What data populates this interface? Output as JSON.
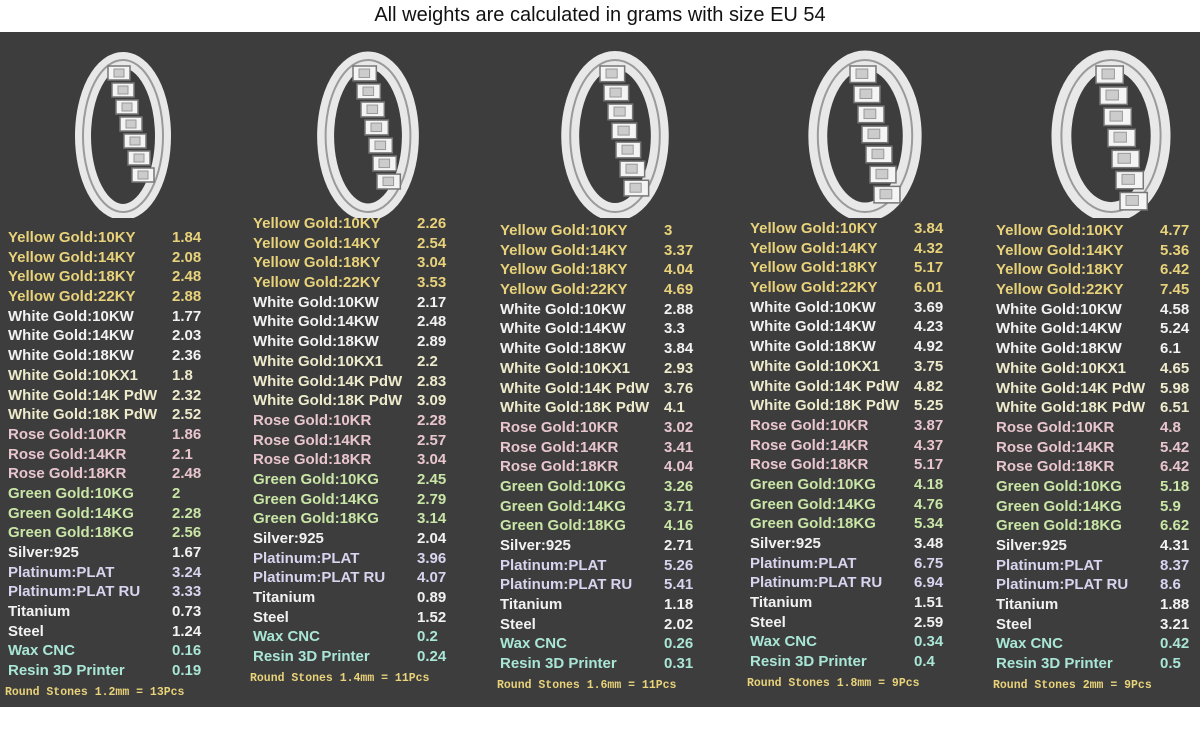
{
  "title": "All weights are calculated in grams with size EU 54",
  "colors": {
    "panel": "#3d3d3d",
    "yellow": "#e8d27a",
    "white": "#f2f2f2",
    "cream": "#eeebcc",
    "rose": "#e9c6cf",
    "green": "#c9e6a6",
    "platinum": "#d9d4ef",
    "aqua": "#a9e6d6",
    "stones": "#e8d27a"
  },
  "materials": [
    {
      "label": "Yellow Gold:10KY",
      "color": "yellow"
    },
    {
      "label": "Yellow Gold:14KY",
      "color": "yellow"
    },
    {
      "label": "Yellow Gold:18KY",
      "color": "yellow"
    },
    {
      "label": "Yellow Gold:22KY",
      "color": "yellow"
    },
    {
      "label": "White Gold:10KW",
      "color": "white"
    },
    {
      "label": "White Gold:14KW",
      "color": "white"
    },
    {
      "label": "White Gold:18KW",
      "color": "white"
    },
    {
      "label": "White Gold:10KX1",
      "color": "cream"
    },
    {
      "label": "White Gold:14K PdW",
      "color": "cream"
    },
    {
      "label": "White Gold:18K PdW",
      "color": "cream"
    },
    {
      "label": "Rose Gold:10KR",
      "color": "rose"
    },
    {
      "label": "Rose Gold:14KR",
      "color": "rose"
    },
    {
      "label": "Rose Gold:18KR",
      "color": "rose"
    },
    {
      "label": "Green Gold:10KG",
      "color": "green"
    },
    {
      "label": "Green Gold:14KG",
      "color": "green"
    },
    {
      "label": "Green Gold:18KG",
      "color": "green"
    },
    {
      "label": "Silver:925",
      "color": "white"
    },
    {
      "label": "Platinum:PLAT",
      "color": "platinum"
    },
    {
      "label": "Platinum:PLAT RU",
      "color": "platinum"
    },
    {
      "label": "Titanium",
      "color": "white"
    },
    {
      "label": "Steel",
      "color": "white"
    },
    {
      "label": "Wax  CNC",
      "color": "aqua"
    },
    {
      "label": "Resin 3D Printer",
      "color": "aqua"
    }
  ],
  "columns": [
    {
      "stones": "Round Stones 1.2mm = 13Pcs",
      "values": [
        "1.84",
        "2.08",
        "2.48",
        "2.88",
        "1.77",
        "2.03",
        "2.36",
        "1.8",
        "2.32",
        "2.52",
        "1.86",
        "2.1",
        "2.48",
        "2",
        "2.28",
        "2.56",
        "1.67",
        "3.24",
        "3.33",
        "0.73",
        "1.24",
        "0.16",
        "0.19"
      ]
    },
    {
      "stones": "Round Stones 1.4mm = 11Pcs",
      "values": [
        "2.26",
        "2.54",
        "3.04",
        "3.53",
        "2.17",
        "2.48",
        "2.89",
        "2.2",
        "2.83",
        "3.09",
        "2.28",
        "2.57",
        "3.04",
        "2.45",
        "2.79",
        "3.14",
        "2.04",
        "3.96",
        "4.07",
        "0.89",
        "1.52",
        "0.2",
        "0.24"
      ]
    },
    {
      "stones": "Round Stones 1.6mm = 11Pcs",
      "values": [
        "3",
        "3.37",
        "4.04",
        "4.69",
        "2.88",
        "3.3",
        "3.84",
        "2.93",
        "3.76",
        "4.1",
        "3.02",
        "3.41",
        "4.04",
        "3.26",
        "3.71",
        "4.16",
        "2.71",
        "5.26",
        "5.41",
        "1.18",
        "2.02",
        "0.26",
        "0.31"
      ]
    },
    {
      "stones": "Round Stones 1.8mm = 9Pcs",
      "values": [
        "3.84",
        "4.32",
        "5.17",
        "6.01",
        "3.69",
        "4.23",
        "4.92",
        "3.75",
        "4.82",
        "5.25",
        "3.87",
        "4.37",
        "5.17",
        "4.18",
        "4.76",
        "5.34",
        "3.48",
        "6.75",
        "6.94",
        "1.51",
        "2.59",
        "0.34",
        "0.4"
      ]
    },
    {
      "stones": "Round Stones 2mm = 9Pcs",
      "values": [
        "4.77",
        "5.36",
        "6.42",
        "7.45",
        "4.58",
        "5.24",
        "6.1",
        "4.65",
        "5.98",
        "6.51",
        "4.8",
        "5.42",
        "6.42",
        "5.18",
        "5.9",
        "6.62",
        "4.31",
        "8.37",
        "8.6",
        "1.88",
        "3.21",
        "0.42",
        "0.5"
      ]
    }
  ]
}
